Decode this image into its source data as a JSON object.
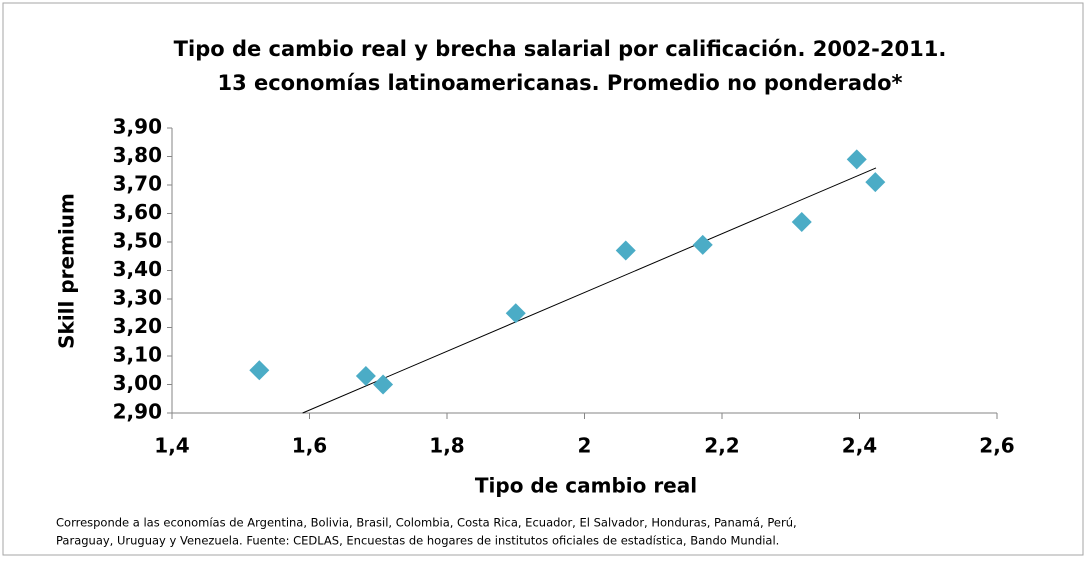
{
  "chart_data": {
    "type": "scatter",
    "title": [
      "Tipo de cambio real y brecha salarial por calificación. 2002-2011.",
      "13 economías latinoamericanas. Promedio no ponderado*"
    ],
    "xlabel": "Tipo de cambio real",
    "ylabel": "Skill premium",
    "footnote": [
      "Corresponde a las economías de Argentina, Bolivia, Brasil, Colombia, Costa Rica, Ecuador, El Salvador, Honduras, Panamá, Perú,",
      "Paraguay, Uruguay y Venezuela.  Fuente: CEDLAS,  Encuestas de hogares de institutos oficiales de estadística, Bando Mundial."
    ],
    "series": [
      {
        "color": "#4bacc6",
        "x": [
          1.527,
          1.682,
          1.707,
          1.9,
          2.06,
          2.172,
          2.316,
          2.396,
          2.423
        ],
        "values": [
          3.05,
          3.03,
          3.0,
          3.25,
          3.47,
          3.49,
          3.57,
          3.79,
          3.71
        ]
      }
    ],
    "trendline": {
      "color": "#000000",
      "x": [
        1.59,
        2.424
      ],
      "values": [
        2.9,
        3.76
      ]
    },
    "xlim": [
      1.4,
      2.6
    ],
    "xticks": [
      {
        "value": 1.4,
        "label": "1,4"
      },
      {
        "value": 1.6,
        "label": "1,6"
      },
      {
        "value": 1.8,
        "label": "1,8"
      },
      2,
      {
        "value": 2.2,
        "label": "2,2"
      },
      {
        "value": 2.4,
        "label": "2,4"
      },
      {
        "value": 2.6,
        "label": "2,6"
      }
    ],
    "ylim": [
      2.9,
      3.9
    ],
    "yticks": [
      {
        "value": 2.9,
        "label": "2,90"
      },
      {
        "value": 3.0,
        "label": "3,00"
      },
      {
        "value": 3.1,
        "label": "3,10"
      },
      {
        "value": 3.2,
        "label": "3,20"
      },
      {
        "value": 3.3,
        "label": "3,30"
      },
      {
        "value": 3.4,
        "label": "3,40"
      },
      {
        "value": 3.5,
        "label": "3,50"
      },
      {
        "value": 3.6,
        "label": "3,60"
      },
      {
        "value": 3.7,
        "label": "3,70"
      },
      {
        "value": 3.8,
        "label": "3,80"
      },
      {
        "value": 3.9,
        "label": "3,90"
      }
    ]
  }
}
